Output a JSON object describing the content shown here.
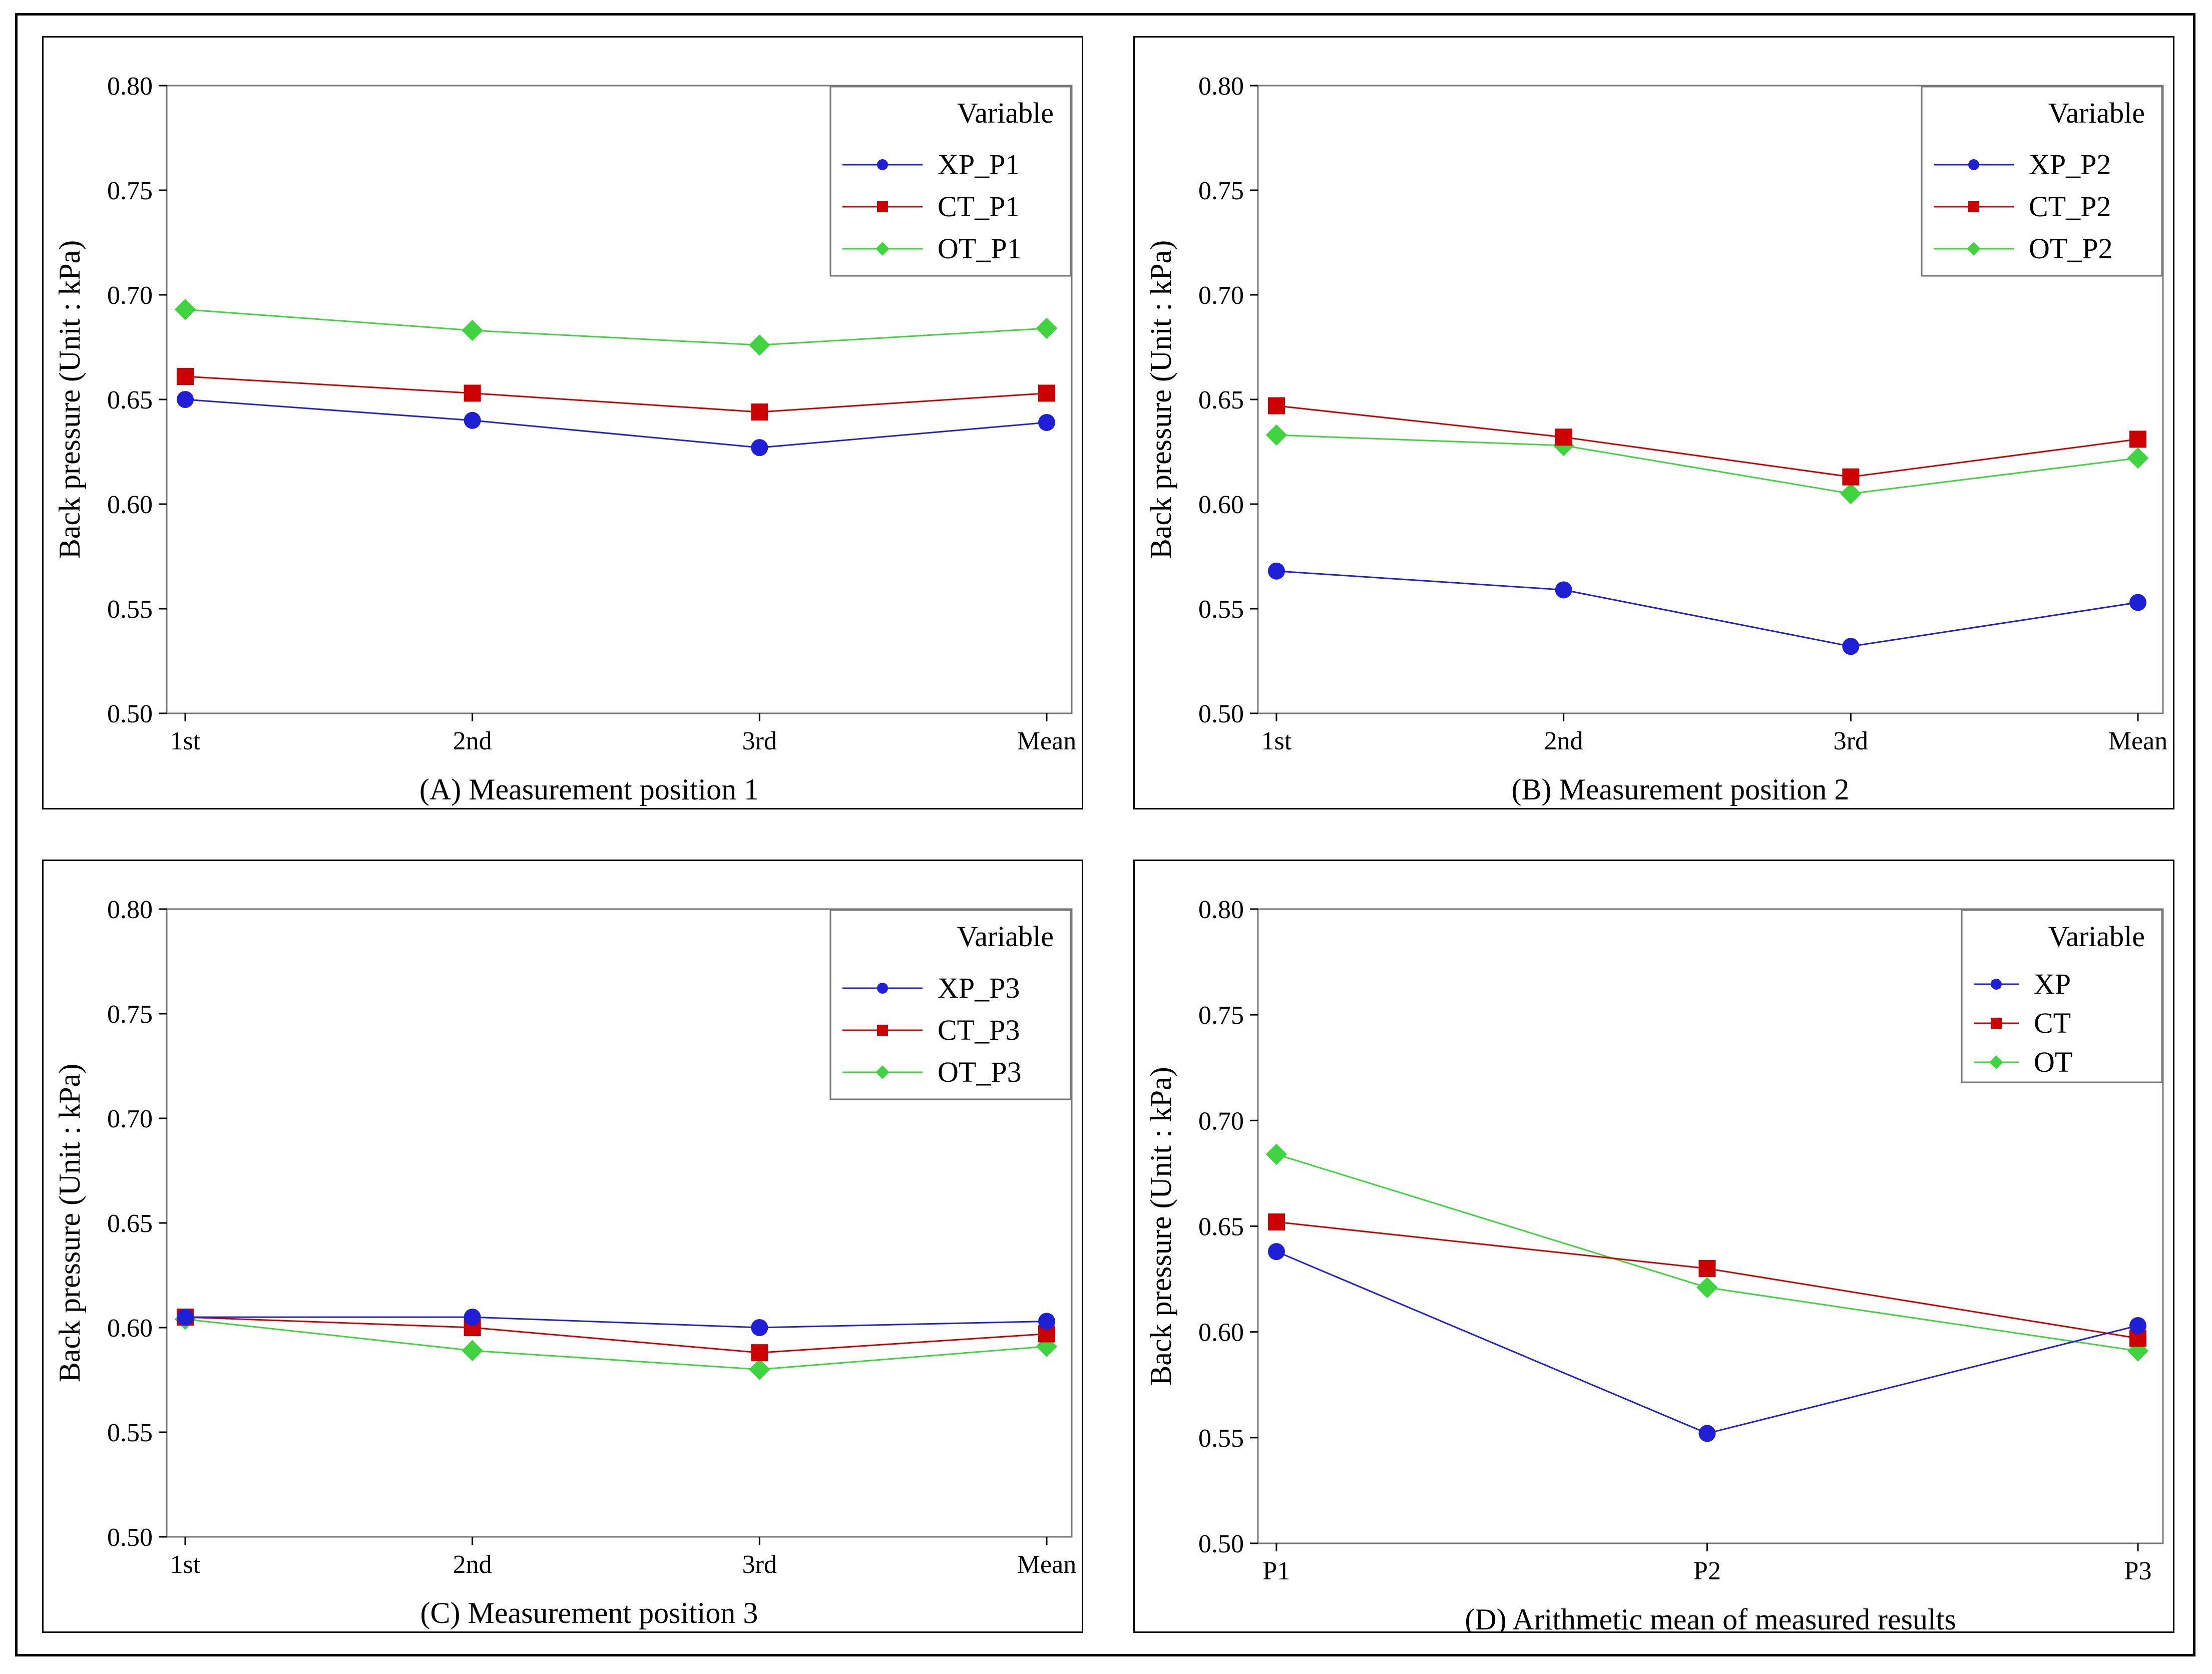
{
  "colors": {
    "xp": "#1f1fd6",
    "ct": "#cc0000",
    "ot": "#3fd43f"
  },
  "chart_data": [
    {
      "type": "line",
      "title": "(A) Measurement position 1",
      "xlabel": "",
      "ylabel": "Back pressure (Unit : kPa)",
      "categories": [
        "1st",
        "2nd",
        "3rd",
        "Mean"
      ],
      "ylim": [
        0.5,
        0.8
      ],
      "yticks": [
        "0.50",
        "0.55",
        "0.60",
        "0.65",
        "0.70",
        "0.75",
        "0.80"
      ],
      "legend_title": "Variable",
      "legend_position": "top-right",
      "series": [
        {
          "name": "XP_P1",
          "marker": "circle",
          "values": [
            0.65,
            0.64,
            0.627,
            0.639
          ]
        },
        {
          "name": "CT_P1",
          "marker": "square",
          "values": [
            0.661,
            0.653,
            0.644,
            0.653
          ]
        },
        {
          "name": "OT_P1",
          "marker": "diamond",
          "values": [
            0.693,
            0.683,
            0.676,
            0.684
          ]
        }
      ]
    },
    {
      "type": "line",
      "title": "(B) Measurement position 2",
      "xlabel": "",
      "ylabel": "Back pressure (Unit : kPa)",
      "categories": [
        "1st",
        "2nd",
        "3rd",
        "Mean"
      ],
      "ylim": [
        0.5,
        0.8
      ],
      "yticks": [
        "0.50",
        "0.55",
        "0.60",
        "0.65",
        "0.70",
        "0.75",
        "0.80"
      ],
      "legend_title": "Variable",
      "legend_position": "top-right",
      "series": [
        {
          "name": "XP_P2",
          "marker": "circle",
          "values": [
            0.568,
            0.559,
            0.532,
            0.553
          ]
        },
        {
          "name": "CT_P2",
          "marker": "square",
          "values": [
            0.647,
            0.632,
            0.613,
            0.631
          ]
        },
        {
          "name": "OT_P2",
          "marker": "diamond",
          "values": [
            0.633,
            0.628,
            0.605,
            0.622
          ]
        }
      ]
    },
    {
      "type": "line",
      "title": "(C) Measurement position 3",
      "xlabel": "",
      "ylabel": "Back pressure (Unit : kPa)",
      "categories": [
        "1st",
        "2nd",
        "3rd",
        "Mean"
      ],
      "ylim": [
        0.5,
        0.8
      ],
      "yticks": [
        "0.50",
        "0.55",
        "0.60",
        "0.65",
        "0.70",
        "0.75",
        "0.80"
      ],
      "legend_title": "Variable",
      "legend_position": "top-right",
      "series": [
        {
          "name": "XP_P3",
          "marker": "circle",
          "values": [
            0.605,
            0.605,
            0.6,
            0.603
          ]
        },
        {
          "name": "CT_P3",
          "marker": "square",
          "values": [
            0.605,
            0.6,
            0.588,
            0.597
          ]
        },
        {
          "name": "OT_P3",
          "marker": "diamond",
          "values": [
            0.604,
            0.589,
            0.58,
            0.591
          ]
        }
      ]
    },
    {
      "type": "line",
      "title": "(D) Arithmetic mean of measured results",
      "xlabel": "",
      "ylabel": "Back pressure (Unit : kPa)",
      "categories": [
        "P1",
        "P2",
        "P3"
      ],
      "ylim": [
        0.5,
        0.8
      ],
      "yticks": [
        "0.50",
        "0.55",
        "0.60",
        "0.65",
        "0.70",
        "0.75",
        "0.80"
      ],
      "legend_title": "Variable",
      "legend_position": "top-right",
      "series": [
        {
          "name": "XP",
          "marker": "circle",
          "values": [
            0.638,
            0.552,
            0.603
          ]
        },
        {
          "name": "CT",
          "marker": "square",
          "values": [
            0.652,
            0.63,
            0.597
          ]
        },
        {
          "name": "OT",
          "marker": "diamond",
          "values": [
            0.684,
            0.621,
            0.591
          ]
        }
      ]
    }
  ]
}
